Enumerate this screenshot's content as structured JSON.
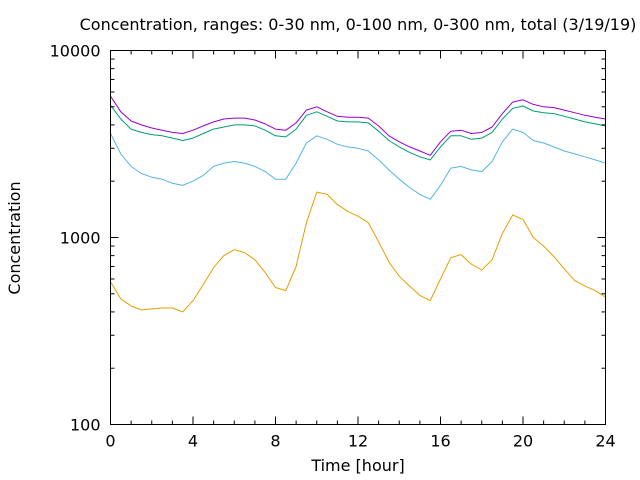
{
  "chart_data": {
    "type": "line",
    "title": "Concentration, ranges: 0-30 nm, 0-100 nm, 0-300 nm, total (3/19/19)",
    "xlabel": "Time [hour]",
    "ylabel": "Concentration",
    "xlim": [
      0,
      24
    ],
    "ylim": [
      100,
      10000
    ],
    "yscale": "log",
    "grid": false,
    "legend": "none",
    "x_ticks": [
      0,
      4,
      8,
      12,
      16,
      20,
      24
    ],
    "x_tick_labels": [
      "0",
      "4",
      "8",
      "12",
      "16",
      "20",
      "24"
    ],
    "y_ticks": [
      100,
      1000,
      10000
    ],
    "y_tick_labels": [
      "100",
      "1000",
      "10000"
    ],
    "x": [
      0,
      0.5,
      1,
      1.5,
      2,
      2.5,
      3,
      3.5,
      4,
      4.5,
      5,
      5.5,
      6,
      6.5,
      7,
      7.5,
      8,
      8.5,
      9,
      9.5,
      10,
      10.5,
      11,
      11.5,
      12,
      12.5,
      13,
      13.5,
      14,
      14.5,
      15,
      15.5,
      16,
      16.5,
      17,
      17.5,
      18,
      18.5,
      19,
      19.5,
      20,
      20.5,
      21,
      21.5,
      22,
      22.5,
      23,
      23.5,
      24
    ],
    "series": [
      {
        "color": "#e69f00",
        "values": [
          580,
          470,
          430,
          410,
          415,
          420,
          420,
          400,
          460,
          560,
          690,
          800,
          860,
          830,
          760,
          650,
          540,
          520,
          700,
          1200,
          1750,
          1700,
          1500,
          1380,
          1300,
          1200,
          950,
          740,
          620,
          550,
          490,
          460,
          600,
          780,
          810,
          720,
          670,
          760,
          1050,
          1320,
          1250,
          1000,
          900,
          790,
          680,
          590,
          550,
          520,
          480
        ]
      },
      {
        "color": "#56b4e9",
        "values": [
          3600,
          2800,
          2400,
          2200,
          2100,
          2050,
          1950,
          1900,
          2000,
          2150,
          2400,
          2500,
          2550,
          2500,
          2400,
          2250,
          2050,
          2050,
          2500,
          3200,
          3500,
          3350,
          3150,
          3050,
          3000,
          2900,
          2600,
          2300,
          2050,
          1850,
          1700,
          1600,
          1900,
          2350,
          2400,
          2300,
          2250,
          2550,
          3250,
          3800,
          3650,
          3300,
          3200,
          3050,
          2900,
          2800,
          2700,
          2600,
          2500
        ]
      },
      {
        "color": "#009e73",
        "values": [
          5100,
          4300,
          3800,
          3650,
          3550,
          3500,
          3400,
          3300,
          3400,
          3600,
          3800,
          3900,
          4000,
          4000,
          3950,
          3750,
          3500,
          3450,
          3800,
          4500,
          4700,
          4450,
          4200,
          4150,
          4150,
          4100,
          3700,
          3300,
          3050,
          2850,
          2700,
          2600,
          3050,
          3500,
          3500,
          3350,
          3400,
          3650,
          4300,
          4900,
          5050,
          4750,
          4650,
          4600,
          4450,
          4300,
          4150,
          4050,
          3950
        ]
      },
      {
        "color": "#9400d3",
        "values": [
          5700,
          4700,
          4200,
          4000,
          3850,
          3750,
          3650,
          3600,
          3750,
          3950,
          4150,
          4300,
          4350,
          4350,
          4250,
          4050,
          3800,
          3750,
          4100,
          4800,
          5000,
          4700,
          4450,
          4400,
          4400,
          4350,
          3950,
          3500,
          3250,
          3050,
          2900,
          2750,
          3250,
          3700,
          3750,
          3600,
          3650,
          3900,
          4600,
          5300,
          5450,
          5150,
          5000,
          4950,
          4800,
          4650,
          4500,
          4400,
          4300
        ]
      }
    ]
  }
}
